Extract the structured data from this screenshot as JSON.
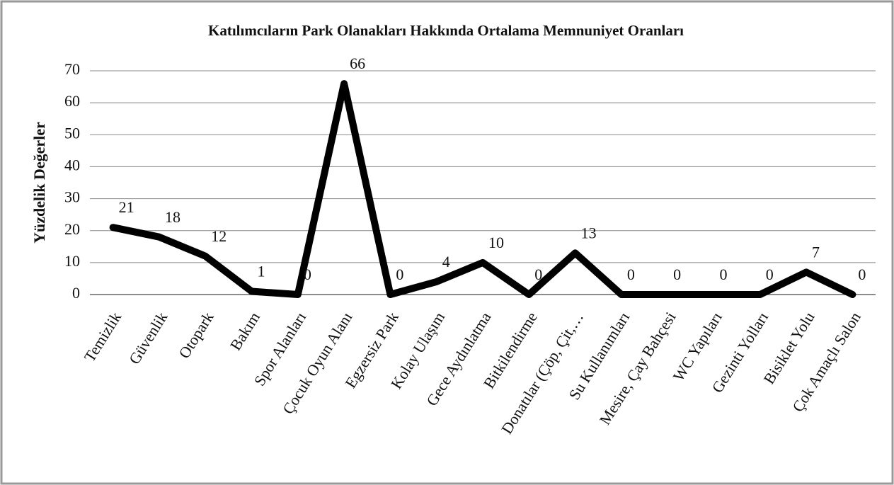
{
  "chart_data": {
    "type": "line",
    "title": "Katılımcıların Park Olanakları Hakkında Ortalama Memnuniyet Oranları",
    "y_label": "Yüzdelik Değerler",
    "categories": [
      "Temizlik",
      "Güvenlik",
      "Otopark",
      "Bakım",
      "Spor Alanları",
      "Çocuk Oyun Alanı",
      "Egzersiz Park",
      "Kolay Ulaşım",
      "Gece Aydınlatma",
      "Bitkilendirme",
      "Donatılar (Çöp, Çit,…",
      "Su Kullanımları",
      "Mesire, Çay Bahçesi",
      "WC Yapıları",
      "Gezinti Yolları",
      "Bisiklet Yolu",
      "Çok Amaçlı Salon"
    ],
    "series": [
      {
        "name": "Memnuniyet",
        "color": "#000000",
        "values": [
          21,
          18,
          12,
          1,
          0,
          66,
          0,
          4,
          10,
          0,
          13,
          0,
          0,
          0,
          0,
          7,
          0
        ]
      }
    ],
    "ylim": [
      0,
      70
    ],
    "yticks": [
      0,
      10,
      20,
      30,
      40,
      50,
      60,
      70
    ],
    "grid": true
  }
}
